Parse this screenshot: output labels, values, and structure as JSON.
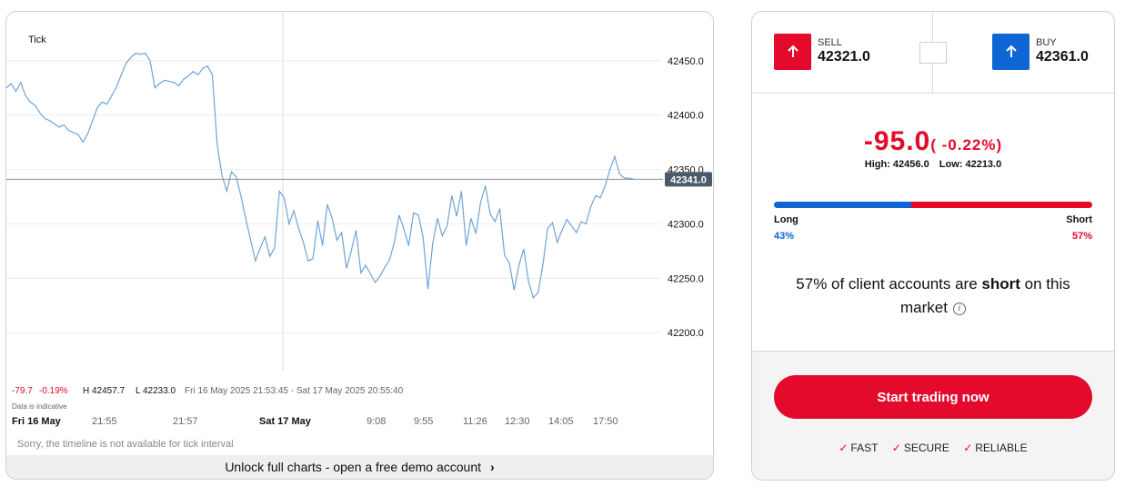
{
  "chart": {
    "interval_label": "Tick",
    "current_price_label": "42341.0",
    "stats": {
      "change": "-79.7",
      "change_pct": "-0.19%",
      "high": "H 42457.7",
      "low": "L 42233.0",
      "range": "Fri 16 May 2025 21:53:45 - Sat 17 May 2025 20:55:40"
    },
    "indicative_note": "Data is indicative",
    "timeline_note": "Sorry, the timeline is not available for tick interval",
    "unlock_text": "Unlock full charts - open a free demo account"
  },
  "chart_data": {
    "type": "line",
    "title": "",
    "y_ticks": [
      "42450.0",
      "42400.0",
      "42350.0",
      "42300.0",
      "42250.0",
      "42200.0"
    ],
    "x_ticks": [
      "Fri 16 May",
      "21:55",
      "21:57",
      "Sat 17 May",
      "9:08",
      "9:55",
      "11:26",
      "12:30",
      "14:05",
      "17:50"
    ],
    "ylim": [
      42165,
      42495
    ],
    "current_price": 42341.0,
    "grid": true,
    "series": [
      {
        "values": [
          42425,
          42429,
          42422,
          42430,
          42418,
          42412,
          42409,
          42402,
          42397,
          42395,
          42392,
          42389,
          42391,
          42386,
          42384,
          42382,
          42375,
          42383,
          42395,
          42407,
          42412,
          42410,
          42418,
          42426,
          42437,
          42448,
          42453,
          42457,
          42456,
          42457,
          42450,
          42425,
          42429,
          42432,
          42431,
          42430,
          42427,
          42433,
          42436,
          42440,
          42437,
          42443,
          42445,
          42437,
          42373,
          42345,
          42330,
          42348,
          42343,
          42325,
          42304,
          42285,
          42266,
          42278,
          42288,
          42270,
          42278,
          42330,
          42324,
          42300,
          42312,
          42296,
          42283,
          42266,
          42268,
          42303,
          42280,
          42318,
          42305,
          42285,
          42292,
          42259,
          42275,
          42294,
          42255,
          42262,
          42254,
          42246,
          42252,
          42260,
          42267,
          42283,
          42308,
          42295,
          42280,
          42310,
          42308,
          42288,
          42240,
          42282,
          42305,
          42289,
          42298,
          42326,
          42307,
          42330,
          42280,
          42305,
          42291,
          42320,
          42335,
          42309,
          42302,
          42314,
          42271,
          42264,
          42239,
          42262,
          42277,
          42247,
          42232,
          42237,
          42262,
          42296,
          42301,
          42283,
          42294,
          42304,
          42298,
          42292,
          42302,
          42300,
          42316,
          42326,
          42324,
          42335,
          42350,
          42362,
          42346,
          42342,
          42342,
          42341
        ]
      }
    ]
  },
  "panel": {
    "sell_label": "SELL",
    "sell_price": "42321.0",
    "buy_label": "BUY",
    "buy_price": "42361.0",
    "change_value": "-95.0",
    "change_pct": "( -0.22%)",
    "high": "High: 42456.0",
    "low": "Low: 42213.0",
    "long_label": "Long",
    "short_label": "Short",
    "long_pct": "43%",
    "short_pct": "57%",
    "long_fraction": 0.43,
    "sentiment_pre": "57% of client accounts are ",
    "sentiment_bold": "short",
    "sentiment_post": " on this market",
    "cta_label": "Start trading now",
    "features": [
      "FAST",
      "SECURE",
      "RELIABLE"
    ]
  },
  "colors": {
    "line": "#6fa4d3",
    "sell": "#e30a2b",
    "buy": "#0d66d4",
    "price_tag": "#4b5b6b"
  }
}
